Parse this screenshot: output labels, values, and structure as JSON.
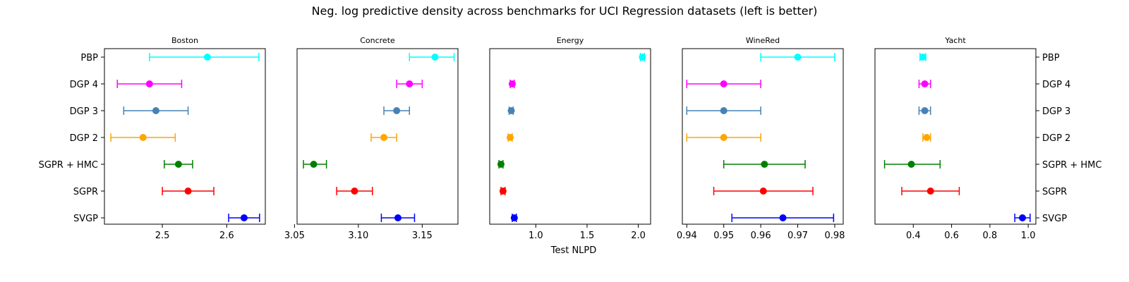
{
  "title": "Neg. log predictive density across benchmarks for UCI Regression datasets (left is better)",
  "xlabel": "Test NLPD",
  "methods": [
    "PBP",
    "DGP 4",
    "DGP 3",
    "DGP 2",
    "SGPR + HMC",
    "SGPR",
    "SVGP"
  ],
  "colors": {
    "PBP": "#00ffff",
    "DGP 4": "#ff00ff",
    "DGP 3": "#4682b4",
    "DGP 2": "#ffa500",
    "SGPR + HMC": "#008000",
    "SGPR": "#ff0000",
    "SVGP": "#0000ff"
  },
  "chart_data": [
    {
      "type": "errorbar",
      "title": "Boston",
      "xlim": [
        2.41,
        2.66
      ],
      "xticks": [
        2.5,
        2.6
      ],
      "xtick_labels": [
        "2.5",
        "2.6"
      ],
      "series": [
        {
          "name": "PBP",
          "value": 2.57,
          "low": 2.48,
          "high": 2.65
        },
        {
          "name": "DGP 4",
          "value": 2.48,
          "low": 2.43,
          "high": 2.53
        },
        {
          "name": "DGP 3",
          "value": 2.49,
          "low": 2.44,
          "high": 2.54
        },
        {
          "name": "DGP 2",
          "value": 2.47,
          "low": 2.42,
          "high": 2.52
        },
        {
          "name": "SGPR + HMC",
          "value": 2.525,
          "low": 2.503,
          "high": 2.547
        },
        {
          "name": "SGPR",
          "value": 2.54,
          "low": 2.5,
          "high": 2.58
        },
        {
          "name": "SVGP",
          "value": 2.627,
          "low": 2.603,
          "high": 2.651
        }
      ]
    },
    {
      "type": "errorbar",
      "title": "Concrete",
      "xlim": [
        3.052,
        3.178
      ],
      "xticks": [
        3.05,
        3.1,
        3.15
      ],
      "xtick_labels": [
        "3.05",
        "3.10",
        "3.15"
      ],
      "series": [
        {
          "name": "PBP",
          "value": 3.16,
          "low": 3.14,
          "high": 3.175
        },
        {
          "name": "DGP 4",
          "value": 3.14,
          "low": 3.13,
          "high": 3.15
        },
        {
          "name": "DGP 3",
          "value": 3.13,
          "low": 3.12,
          "high": 3.14
        },
        {
          "name": "DGP 2",
          "value": 3.12,
          "low": 3.11,
          "high": 3.13
        },
        {
          "name": "SGPR + HMC",
          "value": 3.065,
          "low": 3.057,
          "high": 3.075
        },
        {
          "name": "SGPR",
          "value": 3.097,
          "low": 3.083,
          "high": 3.111
        },
        {
          "name": "SVGP",
          "value": 3.131,
          "low": 3.118,
          "high": 3.144
        }
      ]
    },
    {
      "type": "errorbar",
      "title": "Energy",
      "xlim": [
        0.55,
        2.12
      ],
      "xticks": [
        1.0,
        1.5,
        2.0
      ],
      "xtick_labels": [
        "1.0",
        "1.5",
        "2.0"
      ],
      "series": [
        {
          "name": "PBP",
          "value": 2.04,
          "low": 2.02,
          "high": 2.06
        },
        {
          "name": "DGP 4",
          "value": 0.77,
          "low": 0.75,
          "high": 0.79
        },
        {
          "name": "DGP 3",
          "value": 0.76,
          "low": 0.74,
          "high": 0.78
        },
        {
          "name": "DGP 2",
          "value": 0.75,
          "low": 0.73,
          "high": 0.77
        },
        {
          "name": "SGPR + HMC",
          "value": 0.66,
          "low": 0.64,
          "high": 0.68
        },
        {
          "name": "SGPR",
          "value": 0.68,
          "low": 0.66,
          "high": 0.7
        },
        {
          "name": "SVGP",
          "value": 0.79,
          "low": 0.77,
          "high": 0.81
        }
      ]
    },
    {
      "type": "errorbar",
      "title": "WineRed",
      "xlim": [
        0.9388,
        0.9823
      ],
      "xticks": [
        0.94,
        0.95,
        0.96,
        0.97,
        0.98
      ],
      "xtick_labels": [
        "0.94",
        "0.95",
        "0.96",
        "0.97",
        "0.98"
      ],
      "series": [
        {
          "name": "PBP",
          "value": 0.97,
          "low": 0.96,
          "high": 0.98
        },
        {
          "name": "DGP 4",
          "value": 0.95,
          "low": 0.94,
          "high": 0.96
        },
        {
          "name": "DGP 3",
          "value": 0.95,
          "low": 0.94,
          "high": 0.96
        },
        {
          "name": "DGP 2",
          "value": 0.95,
          "low": 0.94,
          "high": 0.96
        },
        {
          "name": "SGPR + HMC",
          "value": 0.961,
          "low": 0.95,
          "high": 0.972
        },
        {
          "name": "SGPR",
          "value": 0.9607,
          "low": 0.9473,
          "high": 0.9741
        },
        {
          "name": "SVGP",
          "value": 0.966,
          "low": 0.9522,
          "high": 0.9797
        }
      ]
    },
    {
      "type": "errorbar",
      "title": "Yacht",
      "xlim": [
        0.2,
        1.04
      ],
      "xticks": [
        0.4,
        0.6,
        0.8,
        1.0
      ],
      "xtick_labels": [
        "0.4",
        "0.6",
        "0.8",
        "1.0"
      ],
      "series": [
        {
          "name": "PBP",
          "value": 0.45,
          "low": 0.435,
          "high": 0.465
        },
        {
          "name": "DGP 4",
          "value": 0.46,
          "low": 0.43,
          "high": 0.49
        },
        {
          "name": "DGP 3",
          "value": 0.46,
          "low": 0.43,
          "high": 0.49
        },
        {
          "name": "DGP 2",
          "value": 0.47,
          "low": 0.45,
          "high": 0.49
        },
        {
          "name": "SGPR + HMC",
          "value": 0.39,
          "low": 0.25,
          "high": 0.54
        },
        {
          "name": "SGPR",
          "value": 0.49,
          "low": 0.34,
          "high": 0.64
        },
        {
          "name": "SVGP",
          "value": 0.97,
          "low": 0.93,
          "high": 1.01
        }
      ]
    }
  ]
}
